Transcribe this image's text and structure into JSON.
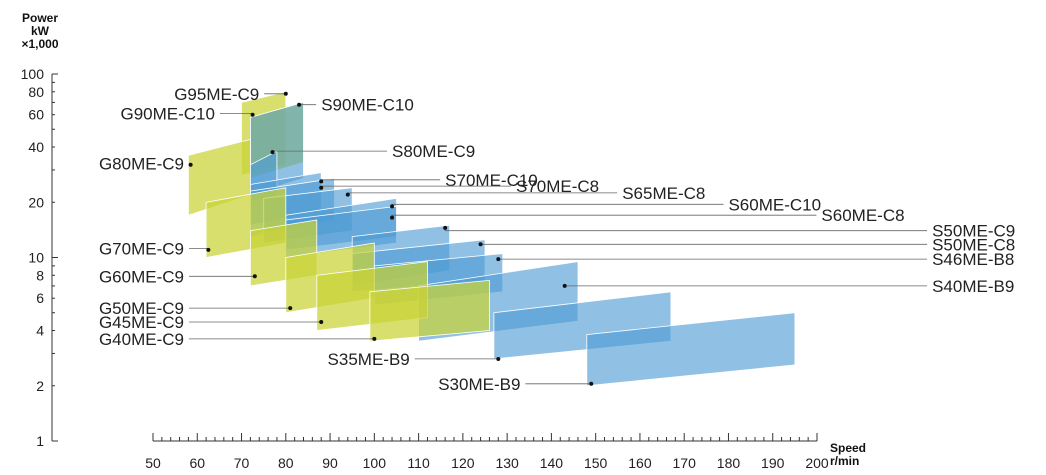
{
  "chart_data": {
    "type": "layout-diagram",
    "xaxis": {
      "title": [
        "Speed",
        "r/min"
      ],
      "range": [
        50,
        200
      ],
      "ticks": [
        50,
        60,
        70,
        80,
        90,
        100,
        110,
        120,
        130,
        140,
        150,
        160,
        170,
        180,
        190,
        200
      ]
    },
    "yaxis": {
      "title": [
        "Power",
        "kW",
        "×1,000"
      ],
      "scale": "log",
      "range": [
        1,
        100
      ],
      "tick_values": [
        1,
        2,
        4,
        6,
        8,
        10,
        20,
        40,
        60,
        80,
        100
      ]
    },
    "colors": {
      "G": "#c9d334",
      "S": "#4c9bd3",
      "axis": "#333333",
      "leader": "#666666"
    },
    "engines": [
      {
        "name": "G95ME-C9",
        "family": "G",
        "speed": [
          70,
          80
        ],
        "power_low": [
          28,
          32
        ],
        "power_high": [
          70,
          80
        ],
        "point": [
          80,
          78
        ],
        "side": "left",
        "label_x": 74,
        "label_y": 78
      },
      {
        "name": "G90ME-C10",
        "family": "G",
        "speed": [
          72,
          84
        ],
        "power_low": [
          27,
          33
        ],
        "power_high": [
          58,
          70
        ],
        "point": [
          72.5,
          60
        ],
        "side": "left",
        "label_x": 64,
        "label_y": 61
      },
      {
        "name": "S90ME-C10",
        "family": "S",
        "speed": [
          72,
          84
        ],
        "power_low": [
          22,
          27
        ],
        "power_high": [
          58,
          70
        ],
        "point": [
          83,
          68
        ],
        "side": "right",
        "label_x": 88,
        "label_y": 68
      },
      {
        "name": "G80ME-C9",
        "family": "G",
        "speed": [
          58,
          72
        ],
        "power_low": [
          17,
          22
        ],
        "power_high": [
          36,
          44
        ],
        "point": [
          58.5,
          32
        ],
        "side": "left",
        "label_x": 57,
        "label_y": 32.5
      },
      {
        "name": "S80ME-C9",
        "family": "S",
        "speed": [
          72,
          78
        ],
        "power_low": [
          20,
          22
        ],
        "power_high": [
          32,
          38
        ],
        "point": [
          77,
          37.5
        ],
        "side": "right",
        "label_x": 104,
        "label_y": 38
      },
      {
        "name": "S70ME-C10",
        "family": "S",
        "speed": [
          72,
          88
        ],
        "power_low": [
          15,
          18
        ],
        "power_high": [
          25,
          29
        ],
        "point": [
          88,
          26
        ],
        "side": "right",
        "label_x": 116,
        "label_y": 26.5
      },
      {
        "name": "S70ME-C8",
        "family": "S",
        "speed": [
          72,
          91
        ],
        "power_low": [
          13,
          16
        ],
        "power_high": [
          23,
          27
        ],
        "point": [
          88,
          24
        ],
        "side": "right",
        "label_x": 132,
        "label_y": 24.5
      },
      {
        "name": "S65ME-C8",
        "family": "S",
        "speed": [
          75,
          95
        ],
        "power_low": [
          12,
          14
        ],
        "power_high": [
          21,
          24
        ],
        "point": [
          94,
          22
        ],
        "side": "right",
        "label_x": 156,
        "label_y": 22.5
      },
      {
        "name": "S60ME-C10",
        "family": "S",
        "speed": [
          80,
          105
        ],
        "power_low": [
          11,
          13
        ],
        "power_high": [
          17,
          21
        ],
        "point": [
          104,
          19
        ],
        "side": "right",
        "label_x": 180,
        "label_y": 19.5
      },
      {
        "name": "S60ME-C8",
        "family": "S",
        "speed": [
          80,
          105
        ],
        "power_low": [
          10,
          12
        ],
        "power_high": [
          16,
          19
        ],
        "point": [
          104,
          16.5
        ],
        "side": "right",
        "label_x": 201,
        "label_y": 17
      },
      {
        "name": "G70ME-C9",
        "family": "G",
        "speed": [
          62,
          80
        ],
        "power_low": [
          10,
          12
        ],
        "power_high": [
          20,
          24
        ],
        "point": [
          62.5,
          11
        ],
        "side": "left",
        "label_x": 57,
        "label_y": 11.2
      },
      {
        "name": "S50ME-C9",
        "family": "S",
        "speed": [
          95,
          117
        ],
        "power_low": [
          7,
          8.5
        ],
        "power_high": [
          13,
          15
        ],
        "point": [
          116,
          14.5
        ],
        "side": "right",
        "label_x": 226,
        "label_y": 14
      },
      {
        "name": "S50ME-C8",
        "family": "S",
        "speed": [
          95,
          125
        ],
        "power_low": [
          6.5,
          7.5
        ],
        "power_high": [
          10.5,
          12.5
        ],
        "point": [
          124,
          11.8
        ],
        "side": "right",
        "label_x": 226,
        "label_y": 11.8
      },
      {
        "name": "G60ME-C9",
        "family": "G",
        "speed": [
          72,
          87
        ],
        "power_low": [
          7,
          8
        ],
        "power_high": [
          14,
          16
        ],
        "point": [
          73,
          7.9
        ],
        "side": "left",
        "label_x": 57,
        "label_y": 7.9
      },
      {
        "name": "S46ME-B8",
        "family": "S",
        "speed": [
          100,
          129
        ],
        "power_low": [
          5.5,
          6.5
        ],
        "power_high": [
          9,
          10.5
        ],
        "point": [
          128,
          9.8
        ],
        "side": "right",
        "label_x": 226,
        "label_y": 9.8
      },
      {
        "name": "S40ME-B9",
        "family": "S",
        "speed": [
          110,
          146
        ],
        "power_low": [
          3.5,
          4.5
        ],
        "power_high": [
          7,
          9.5
        ],
        "point": [
          143,
          7
        ],
        "side": "right",
        "label_x": 226,
        "label_y": 7
      },
      {
        "name": "G50ME-C9",
        "family": "G",
        "speed": [
          80,
          100
        ],
        "power_low": [
          5,
          6
        ],
        "power_high": [
          10,
          12
        ],
        "point": [
          81,
          5.3
        ],
        "side": "left",
        "label_x": 57,
        "label_y": 5.3
      },
      {
        "name": "G45ME-C9",
        "family": "G",
        "speed": [
          87,
          112
        ],
        "power_low": [
          4,
          4.7
        ],
        "power_high": [
          8,
          9.5
        ],
        "point": [
          88,
          4.45
        ],
        "side": "left",
        "label_x": 57,
        "label_y": 4.45
      },
      {
        "name": "G40ME-C9",
        "family": "G",
        "speed": [
          99,
          126
        ],
        "power_low": [
          3.5,
          4
        ],
        "power_high": [
          6.5,
          7.5
        ],
        "point": [
          100,
          3.6
        ],
        "side": "left",
        "label_x": 57,
        "label_y": 3.6
      },
      {
        "name": "S35ME-B9",
        "family": "S",
        "speed": [
          127,
          167
        ],
        "power_low": [
          2.8,
          3.5
        ],
        "power_high": [
          5,
          6.5
        ],
        "point": [
          128,
          2.8
        ],
        "side": "left",
        "label_x": 108,
        "label_y": 2.8
      },
      {
        "name": "S30ME-B9",
        "family": "S",
        "speed": [
          148,
          195
        ],
        "power_low": [
          2,
          2.6
        ],
        "power_high": [
          3.8,
          5
        ],
        "point": [
          149,
          2.05
        ],
        "side": "left",
        "label_x": 133,
        "label_y": 2.05
      }
    ]
  }
}
